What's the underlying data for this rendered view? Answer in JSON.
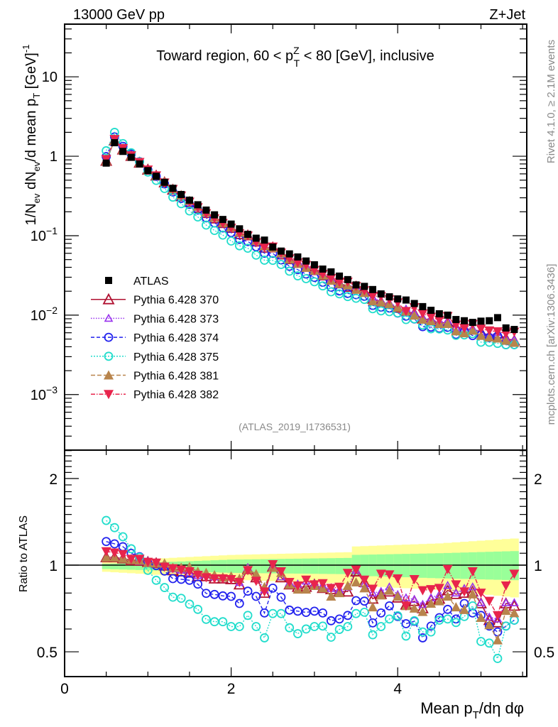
{
  "header": {
    "energy": "13000 GeV pp",
    "process": "Z+Jet",
    "title": {
      "pre": "Toward region, 60 < p",
      "sup": "Z",
      "sub": "T",
      "post": " < 80 [GeV], inclusive"
    },
    "rivet": "Rivet 4.1.0, ≥ 2.1M events",
    "mcplots": "mcplots.cern.ch [arXiv:1306.3436]",
    "analysis": "(ATLAS_2019_I1736531)"
  },
  "chart_data": {
    "type": "scatter",
    "xlabel": {
      "pre": "Mean p",
      "sub": "T",
      "post": "/dη dφ"
    },
    "ylabel": {
      "a": "1/N",
      "a_sub": "ev",
      "b": " dN",
      "b_sub": "ev",
      "c": "/d mean p",
      "c_sub": "T",
      "d": " [GeV]",
      "d_sup": "-1"
    },
    "ratio_ylabel": "Ratio to ATLAS",
    "xlim": [
      0,
      5.55
    ],
    "ylim": [
      0.0002,
      46
    ],
    "ratio_ylim": [
      0.41,
      2.51
    ],
    "yscale": "log",
    "ratio_yscale": "log",
    "x_ticks": [
      {
        "v": 0,
        "label": "0"
      },
      {
        "v": 2,
        "label": "2"
      },
      {
        "v": 4,
        "label": "4"
      }
    ],
    "y_ticks": [
      {
        "v": 10,
        "label": "10"
      },
      {
        "v": 1,
        "label": "1"
      },
      {
        "v": 0.1,
        "label": "10^−1"
      },
      {
        "v": 0.01,
        "label": "10^−2"
      },
      {
        "v": 0.001,
        "label": "10^−3"
      }
    ],
    "ratio_ticks": [
      {
        "v": 2,
        "label": "2"
      },
      {
        "v": 1,
        "label": "1"
      },
      {
        "v": 0.5,
        "label": "0.5"
      }
    ],
    "legend_position": "middle-left",
    "x": [
      0.5,
      0.6,
      0.7,
      0.8,
      0.9,
      1.0,
      1.1,
      1.2,
      1.3,
      1.4,
      1.5,
      1.6,
      1.7,
      1.8,
      1.9,
      2.0,
      2.1,
      2.2,
      2.3,
      2.4,
      2.5,
      2.6,
      2.7,
      2.8,
      2.9,
      3.0,
      3.1,
      3.2,
      3.3,
      3.4,
      3.5,
      3.6,
      3.7,
      3.8,
      3.9,
      4.0,
      4.1,
      4.2,
      4.3,
      4.4,
      4.5,
      4.6,
      4.7,
      4.8,
      4.9,
      5.0,
      5.1,
      5.2,
      5.3,
      5.4
    ],
    "data": {
      "name": "ATLAS",
      "color": "#000000",
      "values": [
        0.82,
        1.48,
        1.15,
        0.97,
        0.8,
        0.66,
        0.56,
        0.47,
        0.395,
        0.33,
        0.28,
        0.245,
        0.21,
        0.183,
        0.16,
        0.14,
        0.122,
        0.104,
        0.093,
        0.088,
        0.072,
        0.064,
        0.059,
        0.054,
        0.048,
        0.043,
        0.038,
        0.035,
        0.031,
        0.028,
        0.024,
        0.023,
        0.021,
        0.0185,
        0.017,
        0.016,
        0.0155,
        0.014,
        0.0128,
        0.0115,
        0.0104,
        0.01,
        0.0088,
        0.0085,
        0.0081,
        0.0084,
        0.0085,
        0.0093,
        0.0069,
        0.0066
      ]
    },
    "uncertainty_band": {
      "knots": [
        {
          "x": 0.45,
          "total": [
            0.95,
            1.03
          ],
          "stat": [
            0.97,
            1.01
          ]
        },
        {
          "x": 1.0,
          "total": [
            0.93,
            1.05
          ],
          "stat": [
            0.96,
            1.02
          ]
        },
        {
          "x": 2.0,
          "total": [
            0.89,
            1.085
          ],
          "stat": [
            0.94,
            1.045
          ]
        },
        {
          "x": 3.45,
          "total": [
            0.86,
            1.11
          ],
          "stat": [
            0.93,
            1.06
          ]
        },
        {
          "x": 3.451,
          "total": [
            0.85,
            1.16
          ],
          "stat": [
            0.92,
            1.085
          ]
        },
        {
          "x": 4.5,
          "total": [
            0.82,
            1.19
          ],
          "stat": [
            0.9,
            1.1
          ]
        },
        {
          "x": 5.45,
          "total": [
            0.77,
            1.24
          ],
          "stat": [
            0.886,
            1.12
          ]
        }
      ],
      "total_color": "#ffff99",
      "stat_color": "#99ff99"
    },
    "series": [
      {
        "name": "Pythia 6.428 370",
        "color": "#b01030",
        "marker": "triangle-open",
        "dash": "",
        "ratio": [
          1.065,
          1.065,
          1.054,
          1.039,
          1.035,
          1.025,
          1.015,
          0.996,
          0.959,
          0.95,
          0.941,
          0.915,
          0.915,
          0.898,
          0.898,
          0.893,
          0.856,
          0.968,
          0.906,
          0.801,
          0.987,
          0.906,
          0.856,
          0.84,
          0.84,
          0.856,
          0.832,
          0.824,
          0.809,
          0.809,
          0.95,
          0.873,
          0.764,
          0.793,
          0.809,
          0.771,
          0.729,
          0.75,
          0.708,
          0.757,
          0.764,
          0.817,
          0.793,
          0.801,
          0.809,
          0.736,
          0.644,
          0.632,
          0.736,
          0.722
        ]
      },
      {
        "name": "Pythia 6.428 373",
        "color": "#9933ee",
        "marker": "triangle-open-small",
        "dash": "1.5,2",
        "ratio": [
          1.06,
          1.06,
          1.05,
          1.04,
          1.03,
          1.03,
          1.02,
          1.0,
          0.97,
          0.96,
          0.94,
          0.92,
          0.93,
          0.91,
          0.9,
          0.91,
          0.87,
          0.98,
          0.92,
          0.82,
          0.99,
          0.91,
          0.87,
          0.86,
          0.88,
          0.86,
          0.85,
          0.83,
          0.82,
          0.84,
          0.96,
          0.86,
          0.8,
          0.81,
          0.84,
          0.79,
          0.77,
          0.76,
          0.73,
          0.77,
          0.79,
          0.85,
          0.8,
          0.83,
          0.84,
          0.74,
          0.66,
          0.65,
          0.74,
          0.74
        ]
      },
      {
        "name": "Pythia 6.428 374",
        "color": "#2222ee",
        "marker": "circle-open",
        "dash": "5,3",
        "ratio": [
          1.208,
          1.186,
          1.159,
          1.099,
          1.07,
          1.019,
          0.996,
          0.954,
          0.898,
          0.893,
          0.886,
          0.859,
          0.798,
          0.791,
          0.782,
          0.779,
          0.736,
          0.812,
          0.779,
          0.682,
          0.832,
          0.774,
          0.698,
          0.692,
          0.685,
          0.692,
          0.682,
          0.641,
          0.65,
          0.669,
          0.753,
          0.75,
          0.63,
          0.682,
          0.722,
          0.663,
          0.626,
          0.638,
          0.559,
          0.614,
          0.657,
          0.702,
          0.65,
          0.736,
          0.682,
          0.669,
          0.614,
          0.586,
          0.614,
          0.644
        ]
      },
      {
        "name": "Pythia 6.428 375",
        "color": "#22ddcc",
        "marker": "circle-open",
        "dash": "2,2",
        "ratio": [
          1.43,
          1.35,
          1.255,
          1.14,
          1.065,
          0.959,
          0.886,
          0.836,
          0.774,
          0.767,
          0.732,
          0.702,
          0.648,
          0.636,
          0.636,
          0.612,
          0.612,
          0.669,
          0.612,
          0.559,
          0.679,
          0.679,
          0.606,
          0.578,
          0.6,
          0.612,
          0.614,
          0.562,
          0.598,
          0.612,
          0.679,
          0.686,
          0.573,
          0.612,
          0.65,
          0.667,
          0.567,
          0.641,
          0.586,
          0.586,
          0.644,
          0.65,
          0.632,
          0.663,
          0.722,
          0.543,
          0.536,
          0.474,
          0.614,
          0.644
        ]
      },
      {
        "name": "Pythia 6.428 381",
        "color": "#b8844c",
        "marker": "triangle-filled",
        "dash": "6,3",
        "ratio": [
          1.065,
          1.065,
          1.054,
          1.045,
          1.039,
          1.019,
          1.015,
          1.015,
          0.981,
          0.981,
          0.987,
          0.95,
          0.941,
          0.924,
          0.906,
          0.915,
          0.898,
          0.968,
          0.932,
          0.84,
          0.981,
          0.941,
          0.856,
          0.824,
          0.824,
          0.848,
          0.832,
          0.779,
          0.801,
          0.848,
          0.873,
          0.832,
          0.715,
          0.786,
          0.817,
          0.779,
          0.722,
          0.708,
          0.689,
          0.736,
          0.75,
          0.779,
          0.715,
          0.7,
          0.793,
          0.657,
          0.62,
          0.549,
          0.695,
          0.682
        ]
      },
      {
        "name": "Pythia 6.428 382",
        "color": "#e8244c",
        "marker": "triangle-down-filled",
        "dash": "6,2,1.5,2",
        "ratio": [
          1.116,
          1.105,
          1.091,
          1.05,
          1.05,
          1.025,
          1.019,
          0.987,
          0.974,
          0.963,
          0.95,
          0.924,
          0.906,
          0.898,
          0.898,
          0.893,
          0.873,
          0.959,
          0.881,
          0.809,
          1.006,
          0.95,
          0.873,
          0.848,
          0.889,
          0.856,
          0.864,
          0.832,
          0.84,
          0.938,
          0.963,
          0.889,
          0.827,
          0.932,
          0.927,
          0.898,
          0.722,
          0.893,
          0.817,
          0.824,
          0.832,
          0.968,
          0.856,
          0.809,
          0.95,
          0.801,
          0.75,
          0.669,
          0.848,
          0.932
        ]
      }
    ]
  }
}
